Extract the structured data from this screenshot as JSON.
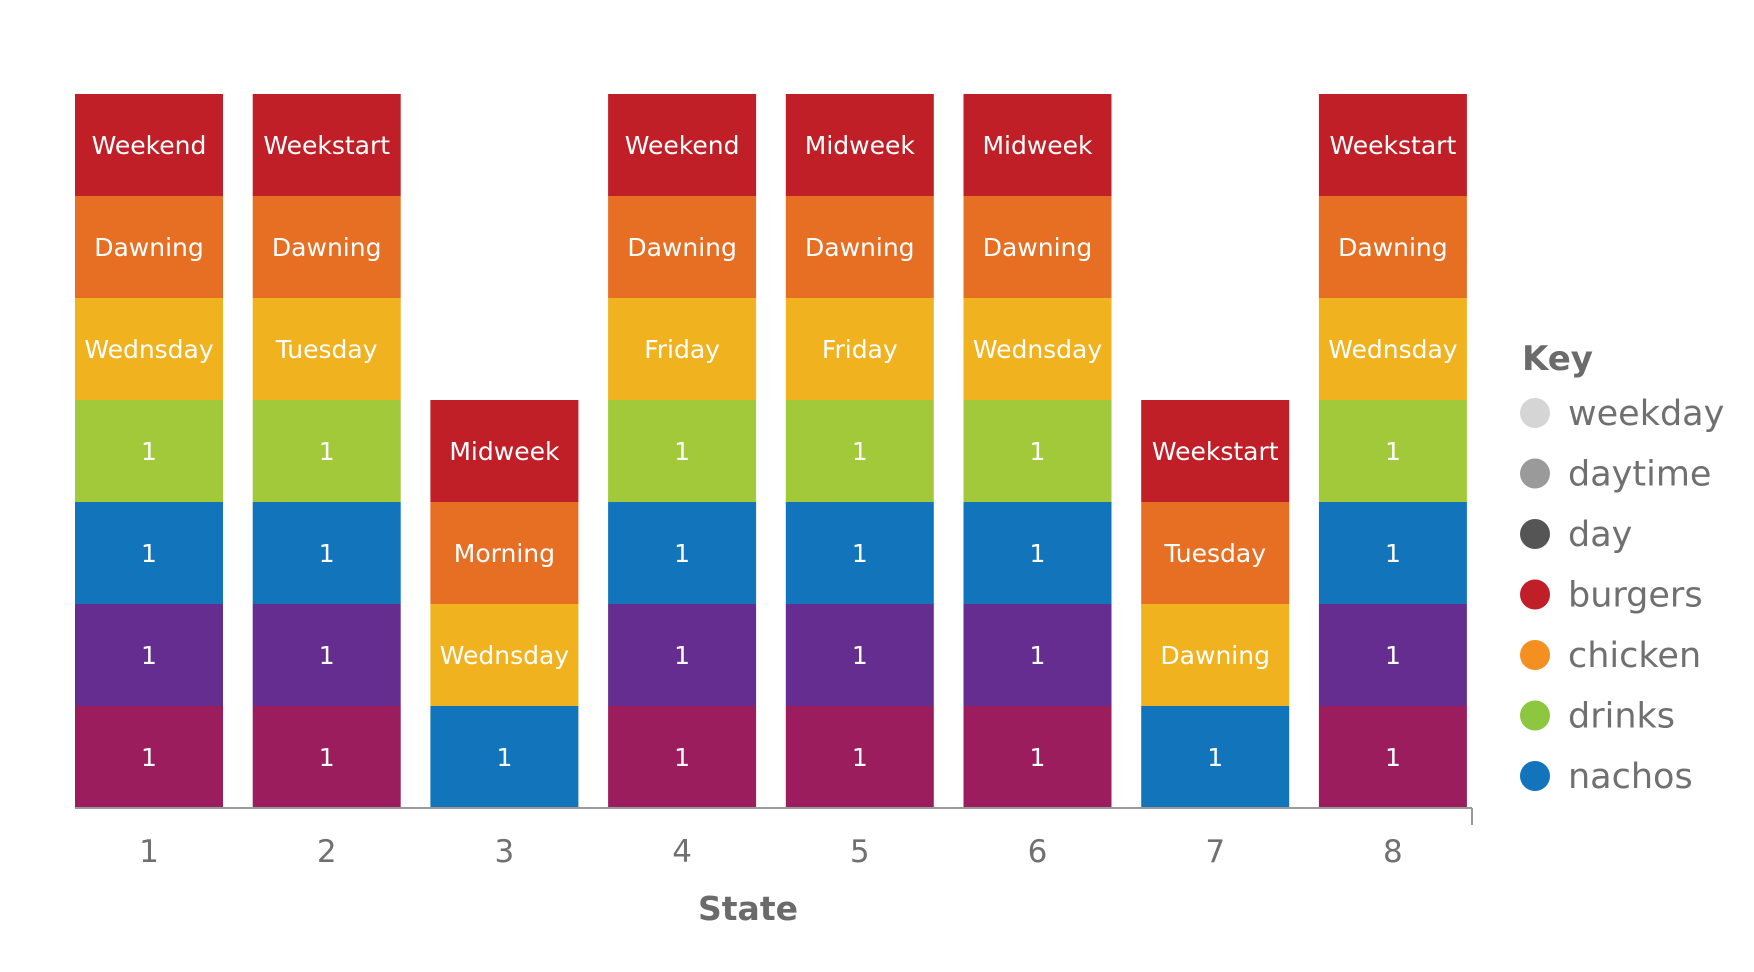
{
  "chart_data": {
    "type": "bar",
    "stacked": true,
    "xlabel": "State",
    "categories": [
      "1",
      "2",
      "3",
      "4",
      "5",
      "6",
      "7",
      "8"
    ],
    "columns": [
      {
        "category": "1",
        "segments": [
          {
            "series": "weekday-val",
            "color": "#9b1d5e",
            "label": "1"
          },
          {
            "series": "day-val",
            "color": "#662d91",
            "label": "1"
          },
          {
            "series": "nachos",
            "color": "#1275bb",
            "label": "1"
          },
          {
            "series": "drinks",
            "color": "#a1c93a",
            "label": "1"
          },
          {
            "series": "weekday",
            "color": "#f0b21f",
            "label": "Wednsday"
          },
          {
            "series": "daytime",
            "color": "#e76f24",
            "label": "Dawning"
          },
          {
            "series": "day",
            "color": "#c11f27",
            "label": "Weekend"
          }
        ]
      },
      {
        "category": "2",
        "segments": [
          {
            "series": "weekday-val",
            "color": "#9b1d5e",
            "label": "1"
          },
          {
            "series": "day-val",
            "color": "#662d91",
            "label": "1"
          },
          {
            "series": "nachos",
            "color": "#1275bb",
            "label": "1"
          },
          {
            "series": "drinks",
            "color": "#a1c93a",
            "label": "1"
          },
          {
            "series": "weekday",
            "color": "#f0b21f",
            "label": "Tuesday"
          },
          {
            "series": "daytime",
            "color": "#e76f24",
            "label": "Dawning"
          },
          {
            "series": "day",
            "color": "#c11f27",
            "label": "Weekstart"
          }
        ]
      },
      {
        "category": "3",
        "segments": [
          {
            "series": "nachos",
            "color": "#1275bb",
            "label": "1"
          },
          {
            "series": "weekday",
            "color": "#f0b21f",
            "label": "Wednsday"
          },
          {
            "series": "daytime",
            "color": "#e76f24",
            "label": "Morning"
          },
          {
            "series": "day",
            "color": "#c11f27",
            "label": "Midweek"
          }
        ]
      },
      {
        "category": "4",
        "segments": [
          {
            "series": "weekday-val",
            "color": "#9b1d5e",
            "label": "1"
          },
          {
            "series": "day-val",
            "color": "#662d91",
            "label": "1"
          },
          {
            "series": "nachos",
            "color": "#1275bb",
            "label": "1"
          },
          {
            "series": "drinks",
            "color": "#a1c93a",
            "label": "1"
          },
          {
            "series": "weekday",
            "color": "#f0b21f",
            "label": "Friday"
          },
          {
            "series": "daytime",
            "color": "#e76f24",
            "label": "Dawning"
          },
          {
            "series": "day",
            "color": "#c11f27",
            "label": "Weekend"
          }
        ]
      },
      {
        "category": "5",
        "segments": [
          {
            "series": "weekday-val",
            "color": "#9b1d5e",
            "label": "1"
          },
          {
            "series": "day-val",
            "color": "#662d91",
            "label": "1"
          },
          {
            "series": "nachos",
            "color": "#1275bb",
            "label": "1"
          },
          {
            "series": "drinks",
            "color": "#a1c93a",
            "label": "1"
          },
          {
            "series": "weekday",
            "color": "#f0b21f",
            "label": "Friday"
          },
          {
            "series": "daytime",
            "color": "#e76f24",
            "label": "Dawning"
          },
          {
            "series": "day",
            "color": "#c11f27",
            "label": "Midweek"
          }
        ]
      },
      {
        "category": "6",
        "segments": [
          {
            "series": "weekday-val",
            "color": "#9b1d5e",
            "label": "1"
          },
          {
            "series": "day-val",
            "color": "#662d91",
            "label": "1"
          },
          {
            "series": "nachos",
            "color": "#1275bb",
            "label": "1"
          },
          {
            "series": "drinks",
            "color": "#a1c93a",
            "label": "1"
          },
          {
            "series": "weekday",
            "color": "#f0b21f",
            "label": "Wednsday"
          },
          {
            "series": "daytime",
            "color": "#e76f24",
            "label": "Dawning"
          },
          {
            "series": "day",
            "color": "#c11f27",
            "label": "Midweek"
          }
        ]
      },
      {
        "category": "7",
        "segments": [
          {
            "series": "nachos",
            "color": "#1275bb",
            "label": "1"
          },
          {
            "series": "weekday",
            "color": "#f0b21f",
            "label": "Dawning"
          },
          {
            "series": "daytime",
            "color": "#e76f24",
            "label": "Tuesday"
          },
          {
            "series": "day",
            "color": "#c11f27",
            "label": "Weekstart"
          }
        ]
      },
      {
        "category": "8",
        "segments": [
          {
            "series": "weekday-val",
            "color": "#9b1d5e",
            "label": "1"
          },
          {
            "series": "day-val",
            "color": "#662d91",
            "label": "1"
          },
          {
            "series": "nachos",
            "color": "#1275bb",
            "label": "1"
          },
          {
            "series": "drinks",
            "color": "#a1c93a",
            "label": "1"
          },
          {
            "series": "weekday",
            "color": "#f0b21f",
            "label": "Wednsday"
          },
          {
            "series": "daytime",
            "color": "#e76f24",
            "label": "Dawning"
          },
          {
            "series": "day",
            "color": "#c11f27",
            "label": "Weekstart"
          }
        ]
      }
    ],
    "segment_units": 1,
    "ylim": [
      0,
      7
    ],
    "grid": false,
    "legend": {
      "title": "Key",
      "placement": "right",
      "entries": [
        {
          "name": "weekday",
          "color": "#d5d5d5"
        },
        {
          "name": "daytime",
          "color": "#9a9a9a"
        },
        {
          "name": "day",
          "color": "#555555"
        },
        {
          "name": "burgers",
          "color": "#c11f27"
        },
        {
          "name": "chicken",
          "color": "#f39021"
        },
        {
          "name": "drinks",
          "color": "#8dc63f"
        },
        {
          "name": "nachos",
          "color": "#1275bb"
        }
      ]
    }
  }
}
